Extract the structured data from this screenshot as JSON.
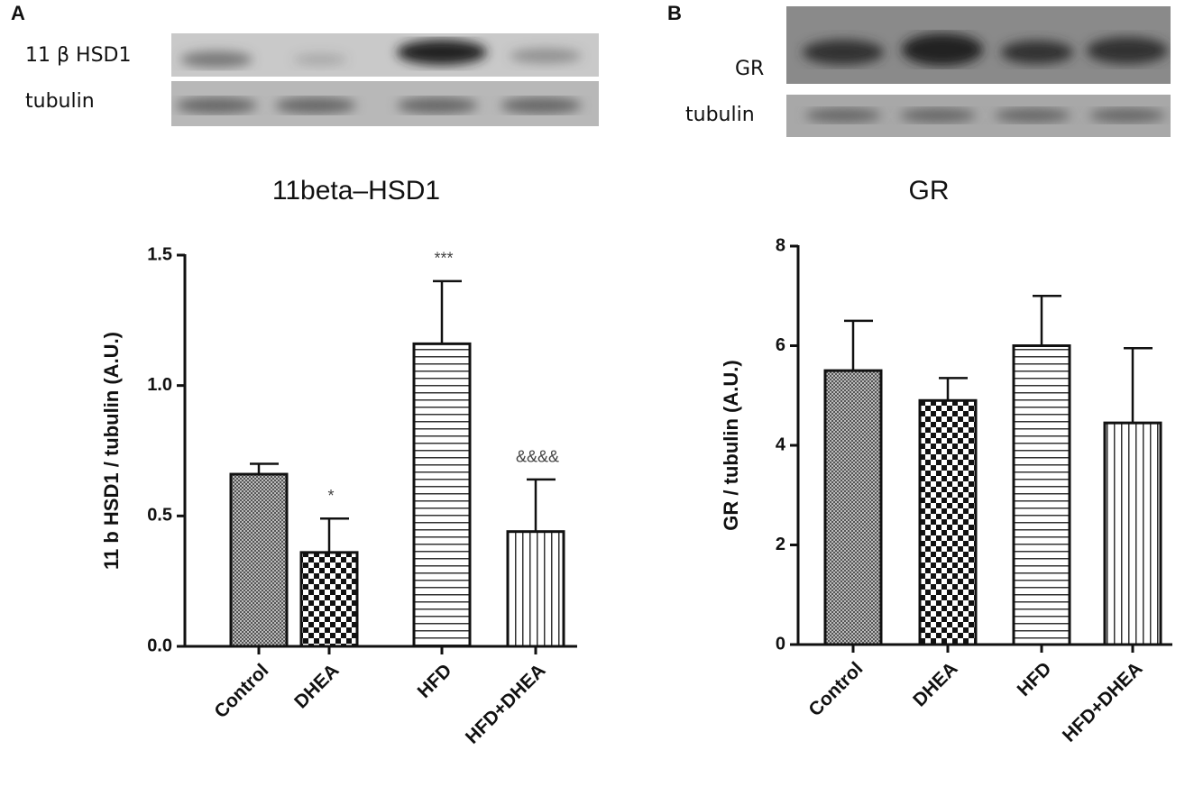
{
  "chart_data": [
    {
      "type": "bar",
      "panel": "A",
      "title": "11beta–HSD1",
      "y_label": "11 b HSD1 / tubulin (A.U.)",
      "blot_labels": [
        "11 β HSD1",
        "tubulin"
      ],
      "categories": [
        "Control",
        "DHEA",
        "HFD",
        "HFD+DHEA"
      ],
      "values": [
        0.66,
        0.36,
        1.16,
        0.44
      ],
      "errors": [
        0.04,
        0.13,
        0.24,
        0.2
      ],
      "annotations": [
        null,
        "*",
        "***",
        "&&&&"
      ],
      "patterns": [
        "crosshatch",
        "checker",
        "hlines",
        "vlines"
      ],
      "ylim": [
        0,
        1.5
      ],
      "yticks": [
        {
          "value": 0,
          "label": "0.0"
        },
        {
          "value": 0.5,
          "label": "0.5"
        },
        {
          "value": 1,
          "label": "1.0"
        },
        {
          "value": 1.5,
          "label": "1.5"
        }
      ]
    },
    {
      "type": "bar",
      "panel": "B",
      "title": "GR",
      "y_label": "GR / tubulin (A.U.)",
      "blot_labels": [
        "GR",
        "tubulin"
      ],
      "categories": [
        "Control",
        "DHEA",
        "HFD",
        "HFD+DHEA"
      ],
      "values": [
        5.5,
        4.9,
        6.0,
        4.45
      ],
      "errors": [
        1.0,
        0.45,
        1.0,
        1.5
      ],
      "patterns": [
        "crosshatch",
        "checker",
        "hlines",
        "vlines"
      ],
      "ylim": [
        0,
        8
      ],
      "yticks": [
        0,
        2,
        4,
        6,
        8
      ]
    }
  ]
}
